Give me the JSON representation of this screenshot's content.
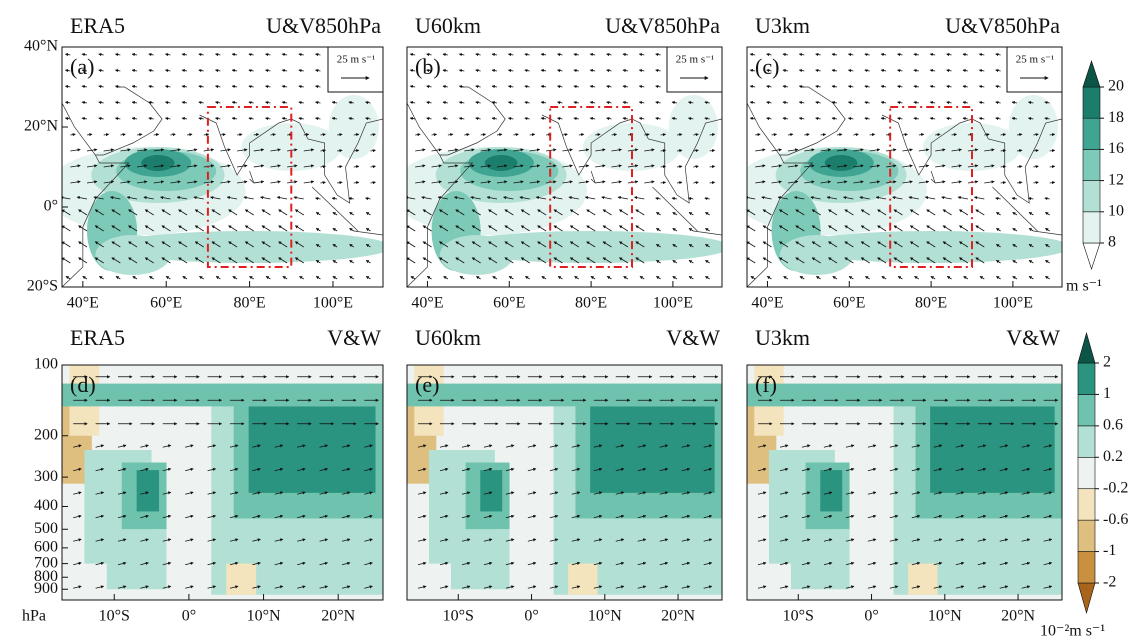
{
  "chart_data": [
    {
      "type": "map",
      "title": "ERA5",
      "variable": "U&V850hPa",
      "label": "(a)",
      "reference_vector": "25 m s⁻¹",
      "xlim": [
        35,
        112
      ],
      "ylim": [
        -20,
        40
      ],
      "xticks": [
        {
          "value": 40,
          "label": "40°E"
        },
        {
          "value": 60,
          "label": "60°E"
        },
        {
          "value": 80,
          "label": "80°E"
        },
        {
          "value": 100,
          "label": "100°E"
        }
      ],
      "yticks": [
        {
          "value": 40,
          "label": "40°N"
        },
        {
          "value": 20,
          "label": "20°N"
        },
        {
          "value": 0,
          "label": "0°"
        },
        {
          "value": -20,
          "label": "20°S"
        }
      ],
      "box": {
        "xlim": [
          70,
          90
        ],
        "ylim": [
          -15,
          25
        ],
        "color": "#e02020"
      }
    },
    {
      "type": "map",
      "title": "U60km",
      "variable": "U&V850hPa",
      "label": "(b)",
      "reference_vector": "25 m s⁻¹",
      "xlim": [
        35,
        112
      ],
      "ylim": [
        -20,
        40
      ],
      "xticks": [
        {
          "value": 40,
          "label": "40°E"
        },
        {
          "value": 60,
          "label": "60°E"
        },
        {
          "value": 80,
          "label": "80°E"
        },
        {
          "value": 100,
          "label": "100°E"
        }
      ],
      "yticks": [],
      "box": {
        "xlim": [
          70,
          90
        ],
        "ylim": [
          -15,
          25
        ],
        "color": "#e02020"
      }
    },
    {
      "type": "map",
      "title": "U3km",
      "variable": "U&V850hPa",
      "label": "(c)",
      "reference_vector": "25 m s⁻¹",
      "xlim": [
        35,
        112
      ],
      "ylim": [
        -20,
        40
      ],
      "xticks": [
        {
          "value": 40,
          "label": "40°E"
        },
        {
          "value": 60,
          "label": "60°E"
        },
        {
          "value": 80,
          "label": "80°E"
        },
        {
          "value": 100,
          "label": "100°E"
        }
      ],
      "yticks": [],
      "box": {
        "xlim": [
          70,
          90
        ],
        "ylim": [
          -15,
          25
        ],
        "color": "#e02020"
      }
    },
    {
      "type": "section",
      "title": "ERA5",
      "variable": "V&W",
      "label": "(d)",
      "ylabel": "hPa",
      "yscale": "log",
      "xlim": [
        -17,
        26
      ],
      "ylim": [
        100,
        1000
      ],
      "xticks": [
        {
          "value": -10,
          "label": "10°S"
        },
        {
          "value": 0,
          "label": "0°"
        },
        {
          "value": 10,
          "label": "10°N"
        },
        {
          "value": 20,
          "label": "20°N"
        }
      ],
      "yticks": [
        100,
        200,
        300,
        400,
        500,
        600,
        700,
        800,
        900
      ]
    },
    {
      "type": "section",
      "title": "U60km",
      "variable": "V&W",
      "label": "(e)",
      "yscale": "log",
      "xlim": [
        -17,
        26
      ],
      "ylim": [
        100,
        1000
      ],
      "xticks": [
        {
          "value": -10,
          "label": "10°S"
        },
        {
          "value": 0,
          "label": "0°"
        },
        {
          "value": 10,
          "label": "10°N"
        },
        {
          "value": 20,
          "label": "20°N"
        }
      ],
      "yticks": []
    },
    {
      "type": "section",
      "title": "U3km",
      "variable": "V&W",
      "label": "(f)",
      "yscale": "log",
      "xlim": [
        -17,
        26
      ],
      "ylim": [
        100,
        1000
      ],
      "xticks": [
        {
          "value": -10,
          "label": "10°S"
        },
        {
          "value": 0,
          "label": "0°"
        },
        {
          "value": 10,
          "label": "10°N"
        },
        {
          "value": 20,
          "label": "20°N"
        }
      ],
      "yticks": []
    },
    {
      "type": "colorbar",
      "ticks": [
        8,
        10,
        12,
        16,
        18,
        20
      ],
      "unit": "m s⁻¹",
      "colors": [
        "#ffffff",
        "#e3f3ef",
        "#b3e0d4",
        "#7ccab7",
        "#3fa592",
        "#1b7d6b",
        "#0b5547"
      ]
    },
    {
      "type": "colorbar",
      "ticks": [
        -2,
        -1,
        -0.6,
        -0.2,
        0.2,
        0.6,
        1,
        2
      ],
      "unit": "10⁻²m s⁻¹",
      "colors": [
        "#a8641a",
        "#c8903f",
        "#dfbf7f",
        "#f3e4bd",
        "#eef2f1",
        "#b3e0d4",
        "#6fc3ae",
        "#2a9480",
        "#0b5547"
      ]
    }
  ]
}
